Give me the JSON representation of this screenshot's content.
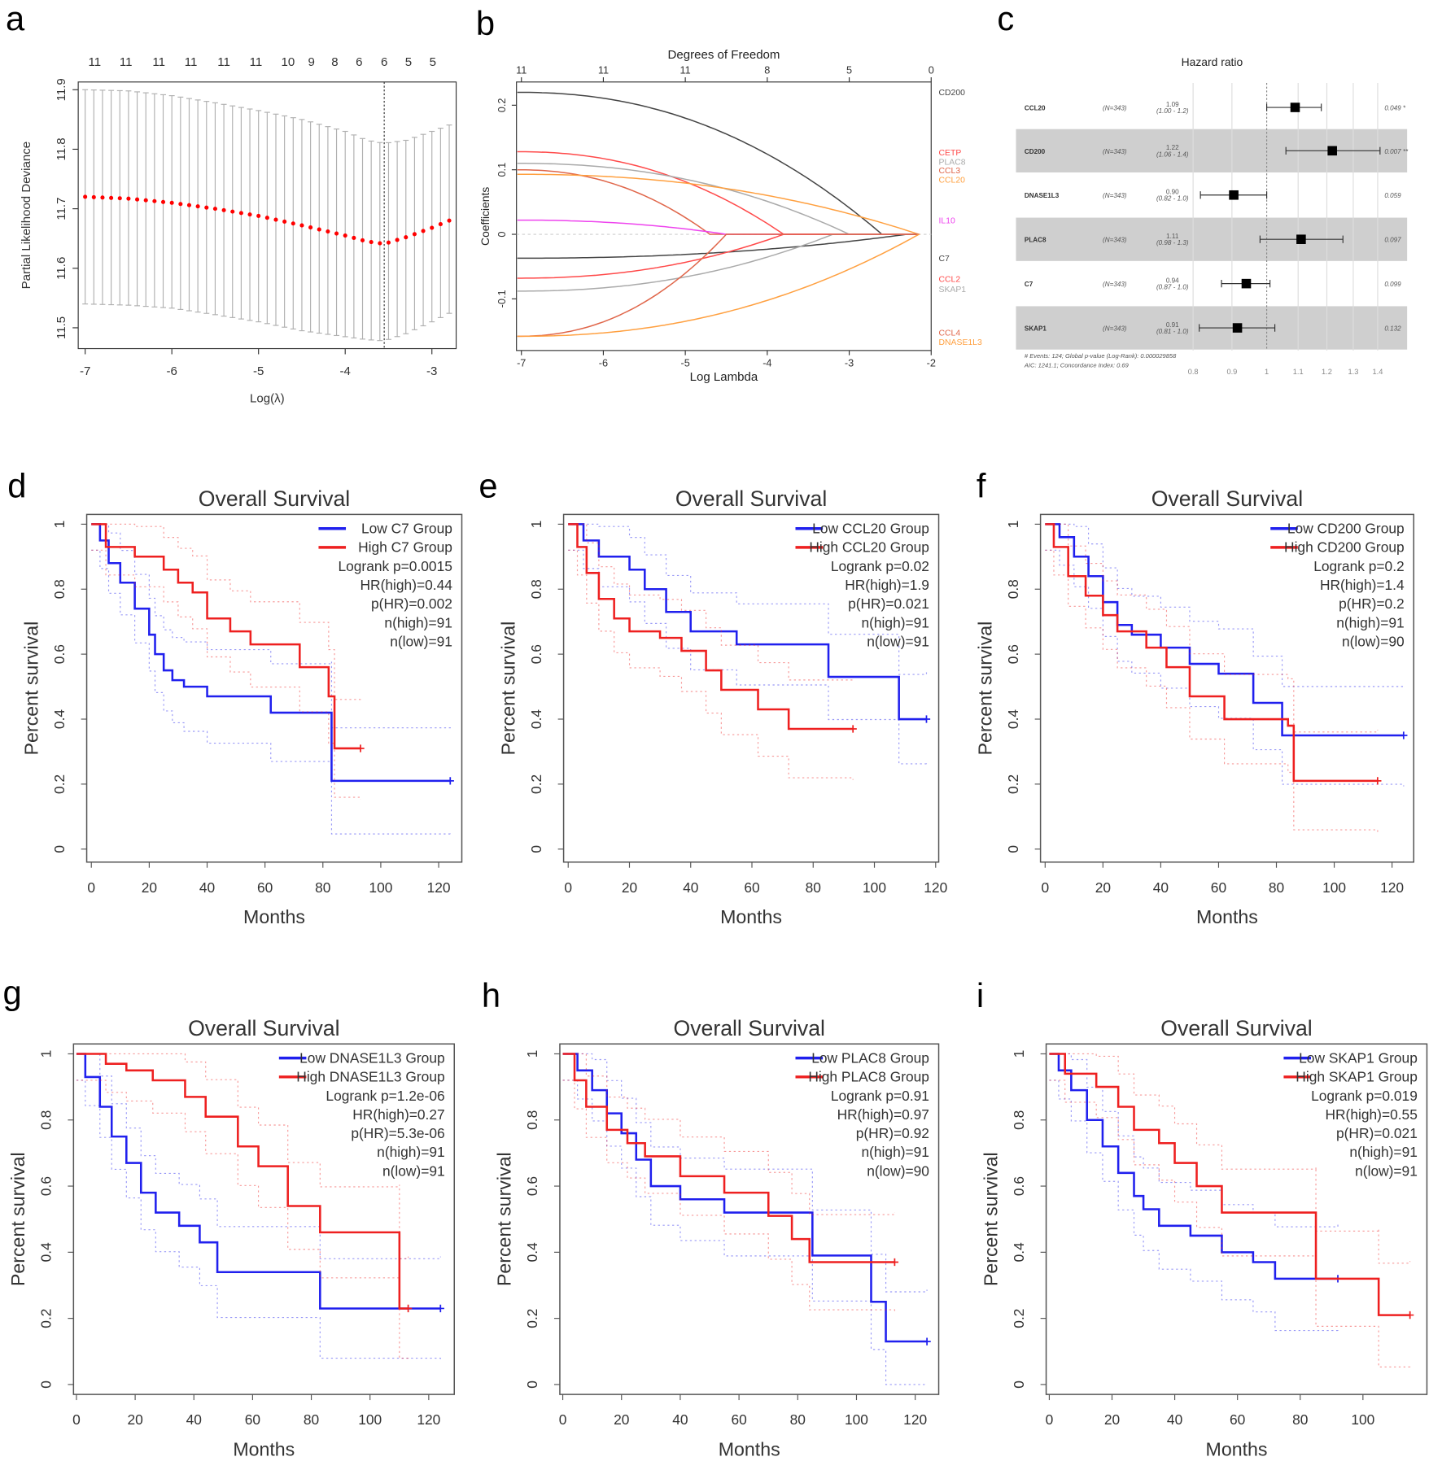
{
  "panel_letters": [
    "a",
    "b",
    "c",
    "d",
    "e",
    "f",
    "g",
    "h",
    "i"
  ],
  "chart_data": [
    {
      "id": "a",
      "type": "scatter",
      "xlabel": "Log(λ)",
      "ylabel": "Partial Likelihood Deviance",
      "xlim": [
        -7.08,
        -2.72
      ],
      "ylim": [
        11.465,
        11.913
      ],
      "xticks": [
        -7,
        -6,
        -5,
        -4,
        -3
      ],
      "yticks": [
        11.5,
        11.6,
        11.7,
        11.8,
        11.9
      ],
      "top_axis": {
        "positions": [
          -6.89,
          -6.53,
          -6.15,
          -5.78,
          -5.4,
          -5.03,
          -4.66,
          -4.39,
          -4.12,
          -3.84,
          -3.55,
          -3.27,
          -2.99
        ],
        "labels": [
          "11",
          "11",
          "11",
          "11",
          "11",
          "11",
          "10",
          "9",
          "8",
          "6",
          "6",
          "5",
          "5"
        ]
      },
      "lambda_min": -3.55,
      "x": [
        -7,
        -6.5,
        -6,
        -5.5,
        -5,
        -4.5,
        -4,
        -3.75,
        -3.55,
        -3.3,
        -3,
        -2.72
      ],
      "mean": [
        11.72,
        11.717,
        11.71,
        11.7,
        11.688,
        11.672,
        11.655,
        11.645,
        11.641,
        11.652,
        11.668,
        11.685
      ],
      "lower": [
        11.54,
        11.538,
        11.533,
        11.522,
        11.51,
        11.495,
        11.485,
        11.48,
        11.478,
        11.49,
        11.51,
        11.53
      ],
      "upper": [
        11.9,
        11.898,
        11.89,
        11.878,
        11.865,
        11.85,
        11.83,
        11.815,
        11.81,
        11.815,
        11.83,
        11.845
      ],
      "colors": {
        "points": "#ff0000",
        "bars": "#b0b0b0"
      }
    },
    {
      "id": "b",
      "type": "line",
      "title": "Degrees of Freedom",
      "xlabel": "Log Lambda",
      "ylabel": "Coefficients",
      "xlim": [
        -7.06,
        -2
      ],
      "ylim": [
        -0.18,
        0.236
      ],
      "xticks": [
        -7,
        -6,
        -5,
        -4,
        -3,
        -2
      ],
      "yticks": [
        -0.1,
        0,
        0.1,
        0.2
      ],
      "top_axis": {
        "positions": [
          -7,
          -6,
          -5,
          -4,
          -3,
          -2
        ],
        "labels": [
          "11",
          "11",
          "11",
          "8",
          "5",
          "0"
        ]
      },
      "series": [
        {
          "name": "CD200",
          "start": 0.22,
          "zero_at": -2.6,
          "color": "#444444"
        },
        {
          "name": "CETP",
          "start": 0.128,
          "zero_at": -3.8,
          "color": "#ff4a4a"
        },
        {
          "name": "PLAC8",
          "start": 0.11,
          "zero_at": -3.0,
          "color": "#aaaaaa"
        },
        {
          "name": "CCL3",
          "start": 0.1,
          "zero_at": -4.7,
          "color": "#e0664a"
        },
        {
          "name": "CCL20",
          "start": 0.093,
          "zero_at": -2.15,
          "color": "#ffa040"
        },
        {
          "name": "IL10",
          "start": 0.022,
          "zero_at": -4.5,
          "color": "#ee44ee"
        },
        {
          "name": "C7",
          "start": -0.037,
          "zero_at": -2.3,
          "color": "#444444"
        },
        {
          "name": "CCL2",
          "start": -0.068,
          "zero_at": -3.8,
          "color": "#ff4a4a"
        },
        {
          "name": "SKAP1",
          "start": -0.088,
          "zero_at": -3.2,
          "color": "#aaaaaa"
        },
        {
          "name": "CCL4",
          "start": -0.158,
          "zero_at": -4.5,
          "color": "#e0664a"
        },
        {
          "name": "DNASE1L3",
          "start": -0.158,
          "zero_at": -2.15,
          "color": "#ffa040"
        }
      ]
    },
    {
      "id": "c",
      "type": "forest",
      "title": "Hazard ratio",
      "xticks": [
        0.8,
        0.9,
        1,
        1.1,
        1.2,
        1.3,
        1.4
      ],
      "xscale": "log",
      "rows": [
        {
          "gene": "CCL20",
          "n": "(N=343)",
          "hr": "1.09",
          "ci": "(1.00 - 1.2)",
          "hr_val": 1.09,
          "lo": 1.0,
          "hi": 1.18,
          "p": "0.049 *"
        },
        {
          "gene": "CD200",
          "n": "(N=343)",
          "hr": "1.22",
          "ci": "(1.06 - 1.4)",
          "hr_val": 1.22,
          "lo": 1.06,
          "hi": 1.41,
          "p": "0.007 **"
        },
        {
          "gene": "DNASE1L3",
          "n": "(N=343)",
          "hr": "0.90",
          "ci": "(0.82 - 1.0)",
          "hr_val": 0.905,
          "lo": 0.818,
          "hi": 1.0,
          "p": "0.059"
        },
        {
          "gene": "PLAC8",
          "n": "(N=343)",
          "hr": "1.11",
          "ci": "(0.98 - 1.3)",
          "hr_val": 1.11,
          "lo": 0.98,
          "hi": 1.26,
          "p": "0.097"
        },
        {
          "gene": "C7",
          "n": "(N=343)",
          "hr": "0.94",
          "ci": "(0.87 - 1.0)",
          "hr_val": 0.94,
          "lo": 0.872,
          "hi": 1.01,
          "p": "0.099"
        },
        {
          "gene": "SKAP1",
          "n": "(N=343)",
          "hr": "0.91",
          "ci": "(0.81 - 1.0)",
          "hr_val": 0.915,
          "lo": 0.815,
          "hi": 1.025,
          "p": "0.132"
        }
      ],
      "footnote1": "# Events: 124; Global p-value (Log-Rank): 0.000029858",
      "footnote2": "AIC: 1241.1; Concordance Index: 0.69"
    },
    {
      "id": "d",
      "type": "line",
      "title": "Overall Survival",
      "xlabel": "Months",
      "ylabel": "Percent survival",
      "xlim": [
        -1.6,
        128
      ],
      "ylim": [
        -0.04,
        1.03
      ],
      "xticks": [
        0,
        20,
        40,
        60,
        80,
        100,
        120
      ],
      "yticks": [
        0,
        0.2,
        0.4,
        0.6,
        0.8,
        1.0
      ],
      "legend": [
        "Low C7 Group",
        "High C7 Group",
        "Logrank p=0.0015",
        "HR(high)=0.44",
        "p(HR)=0.002",
        "n(high)=91",
        "n(low)=91"
      ],
      "series": [
        {
          "name": "Low C7 Group",
          "color": "#2020ee",
          "t": [
            0,
            3,
            6,
            10,
            15,
            20,
            22,
            25,
            28,
            32,
            40,
            62,
            83,
            83,
            124
          ],
          "s": [
            1,
            0.95,
            0.88,
            0.82,
            0.74,
            0.66,
            0.6,
            0.55,
            0.52,
            0.5,
            0.47,
            0.42,
            0.42,
            0.21,
            0.21
          ]
        },
        {
          "name": "High C7 Group",
          "color": "#ee2020",
          "t": [
            0,
            5,
            15,
            25,
            30,
            35,
            40,
            48,
            55,
            72,
            82,
            84,
            93
          ],
          "s": [
            1,
            0.93,
            0.9,
            0.86,
            0.82,
            0.79,
            0.71,
            0.67,
            0.63,
            0.56,
            0.47,
            0.31,
            0.31
          ]
        }
      ]
    },
    {
      "id": "e",
      "type": "line",
      "title": "Overall Survival",
      "xlabel": "Months",
      "ylabel": "Percent survival",
      "xlim": [
        -1.5,
        121
      ],
      "ylim": [
        -0.04,
        1.03
      ],
      "xticks": [
        0,
        20,
        40,
        60,
        80,
        100,
        120
      ],
      "yticks": [
        0,
        0.2,
        0.4,
        0.6,
        0.8,
        1.0
      ],
      "legend": [
        "Low CCL20 Group",
        "High CCL20 Group",
        "Logrank p=0.02",
        "HR(high)=1.9",
        "p(HR)=0.021",
        "n(high)=91",
        "n(low)=91"
      ],
      "series": [
        {
          "name": "Low CCL20 Group",
          "color": "#2020ee",
          "t": [
            0,
            5,
            10,
            20,
            25,
            32,
            40,
            55,
            85,
            108,
            117
          ],
          "s": [
            1,
            0.95,
            0.9,
            0.86,
            0.8,
            0.73,
            0.67,
            0.63,
            0.53,
            0.4,
            0.4
          ]
        },
        {
          "name": "High CCL20 Group",
          "color": "#ee2020",
          "t": [
            0,
            3,
            6,
            10,
            15,
            20,
            30,
            37,
            45,
            50,
            62,
            72,
            93
          ],
          "s": [
            1,
            0.93,
            0.85,
            0.77,
            0.71,
            0.67,
            0.65,
            0.61,
            0.55,
            0.49,
            0.43,
            0.37,
            0.37
          ]
        }
      ]
    },
    {
      "id": "f",
      "type": "line",
      "title": "Overall Survival",
      "xlabel": "Months",
      "ylabel": "Percent survival",
      "xlim": [
        -1.6,
        127.5
      ],
      "ylim": [
        -0.04,
        1.03
      ],
      "xticks": [
        0,
        20,
        40,
        60,
        80,
        100,
        120
      ],
      "yticks": [
        0,
        0.2,
        0.4,
        0.6,
        0.8,
        1.0
      ],
      "legend": [
        "Low CD200 Group",
        "High CD200 Group",
        "Logrank p=0.2",
        "HR(high)=1.4",
        "p(HR)=0.2",
        "n(high)=91",
        "n(low)=90"
      ],
      "series": [
        {
          "name": "Low CD200 Group",
          "color": "#2020ee",
          "t": [
            0,
            5,
            10,
            15,
            20,
            25,
            30,
            40,
            50,
            60,
            72,
            82,
            124
          ],
          "s": [
            1,
            0.96,
            0.9,
            0.84,
            0.76,
            0.69,
            0.66,
            0.62,
            0.57,
            0.54,
            0.45,
            0.35,
            0.35
          ]
        },
        {
          "name": "High CD200 Group",
          "color": "#ee2020",
          "t": [
            0,
            3,
            8,
            14,
            20,
            25,
            35,
            42,
            50,
            62,
            84,
            86,
            115
          ],
          "s": [
            1,
            0.93,
            0.84,
            0.78,
            0.72,
            0.67,
            0.62,
            0.56,
            0.47,
            0.4,
            0.38,
            0.21,
            0.21
          ]
        }
      ]
    },
    {
      "id": "g",
      "type": "line",
      "title": "Overall Survival",
      "xlabel": "Months",
      "ylabel": "Percent survival",
      "xlim": [
        -1,
        128.7
      ],
      "ylim": [
        -0.03,
        1.03
      ],
      "xticks": [
        0,
        20,
        40,
        60,
        80,
        100,
        120
      ],
      "yticks": [
        0,
        0.2,
        0.4,
        0.6,
        0.8,
        1.0
      ],
      "legend": [
        "Low DNASE1L3 Group",
        "High DNASE1L3 Group",
        "Logrank p=1.2e-06",
        "HR(high)=0.27",
        "p(HR)=5.3e-06",
        "n(high)=91",
        "n(low)=91"
      ],
      "series": [
        {
          "name": "Low DNASE1L3 Group",
          "color": "#2020ee",
          "t": [
            0,
            3,
            8,
            12,
            17,
            22,
            27,
            35,
            42,
            48,
            83,
            83,
            124
          ],
          "s": [
            1,
            0.93,
            0.84,
            0.75,
            0.67,
            0.58,
            0.52,
            0.48,
            0.43,
            0.34,
            0.34,
            0.23,
            0.23
          ]
        },
        {
          "name": "High DNASE1L3 Group",
          "color": "#ee2020",
          "t": [
            0,
            10,
            17,
            26,
            37,
            44,
            55,
            62,
            72,
            83,
            110,
            110,
            113
          ],
          "s": [
            1,
            0.97,
            0.95,
            0.92,
            0.87,
            0.81,
            0.72,
            0.66,
            0.54,
            0.46,
            0.46,
            0.23,
            0.23
          ]
        }
      ]
    },
    {
      "id": "h",
      "type": "line",
      "title": "Overall Survival",
      "xlabel": "Months",
      "ylabel": "Percent survival",
      "xlim": [
        -1,
        128
      ],
      "ylim": [
        -0.03,
        1.03
      ],
      "xticks": [
        0,
        20,
        40,
        60,
        80,
        100,
        120
      ],
      "yticks": [
        0,
        0.2,
        0.4,
        0.6,
        0.8,
        1.0
      ],
      "legend": [
        "Low PLAC8 Group",
        "High PLAC8 Group",
        "Logrank p=0.91",
        "HR(high)=0.97",
        "p(HR)=0.92",
        "n(high)=91",
        "n(low)=90"
      ],
      "series": [
        {
          "name": "Low PLAC8 Group",
          "color": "#2020ee",
          "t": [
            0,
            5,
            10,
            15,
            20,
            25,
            30,
            40,
            55,
            85,
            105,
            110,
            124
          ],
          "s": [
            1,
            0.95,
            0.89,
            0.82,
            0.76,
            0.68,
            0.6,
            0.56,
            0.52,
            0.39,
            0.25,
            0.13,
            0.13
          ]
        },
        {
          "name": "High PLAC8 Group",
          "color": "#ee2020",
          "t": [
            0,
            4,
            8,
            15,
            22,
            28,
            40,
            55,
            70,
            78,
            84,
            113
          ],
          "s": [
            1,
            0.92,
            0.84,
            0.77,
            0.73,
            0.69,
            0.63,
            0.58,
            0.51,
            0.44,
            0.37,
            0.37
          ]
        }
      ]
    },
    {
      "id": "i",
      "type": "line",
      "title": "Overall Survival",
      "xlabel": "Months",
      "ylabel": "Percent survival",
      "xlim": [
        -1,
        120.4
      ],
      "ylim": [
        -0.03,
        1.03
      ],
      "xticks": [
        0,
        20,
        40,
        60,
        80,
        100
      ],
      "yticks": [
        0,
        0.2,
        0.4,
        0.6,
        0.8,
        1.0
      ],
      "legend": [
        "Low SKAP1 Group",
        "High SKAP1 Group",
        "Logrank p=0.019",
        "HR(high)=0.55",
        "p(HR)=0.021",
        "n(high)=91",
        "n(low)=91"
      ],
      "series": [
        {
          "name": "Low SKAP1 Group",
          "color": "#2020ee",
          "t": [
            0,
            3,
            7,
            12,
            17,
            22,
            27,
            30,
            35,
            45,
            55,
            65,
            72,
            92
          ],
          "s": [
            1,
            0.95,
            0.89,
            0.8,
            0.72,
            0.64,
            0.57,
            0.53,
            0.48,
            0.45,
            0.4,
            0.37,
            0.32,
            0.32
          ]
        },
        {
          "name": "High SKAP1 Group",
          "color": "#ee2020",
          "t": [
            0,
            5,
            15,
            22,
            27,
            35,
            40,
            47,
            55,
            85,
            85,
            105,
            105,
            115
          ],
          "s": [
            1,
            0.94,
            0.9,
            0.84,
            0.77,
            0.73,
            0.67,
            0.6,
            0.52,
            0.52,
            0.32,
            0.32,
            0.21,
            0.21
          ]
        }
      ]
    }
  ]
}
